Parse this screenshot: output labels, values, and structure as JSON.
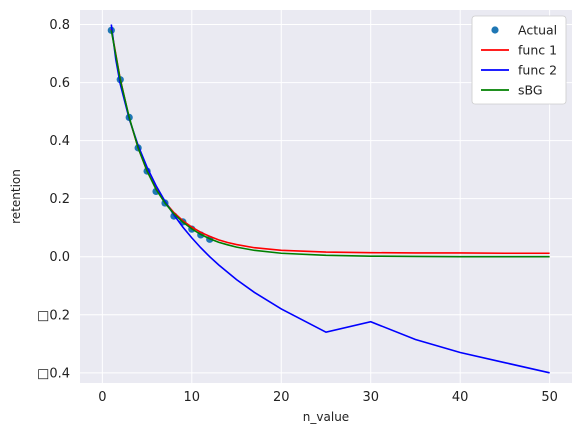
{
  "chart_data": {
    "type": "line",
    "xlabel": "n_value",
    "ylabel": "retention",
    "xlim": [
      -2.5,
      52.5
    ],
    "ylim": [
      -0.435,
      0.85
    ],
    "x_ticks": [
      0,
      10,
      20,
      30,
      40,
      50
    ],
    "x_tick_labels": [
      "0",
      "10",
      "20",
      "30",
      "40",
      "50"
    ],
    "y_ticks": [
      0.8,
      0.6,
      0.4,
      0.2,
      0.0,
      -0.2,
      -0.4
    ],
    "y_tick_labels": [
      "0.8",
      "0.6",
      "0.4",
      "0.2",
      "0.0",
      "□0.2",
      "□0.4"
    ],
    "grid": true,
    "legend_position": "top-right",
    "legend": [
      "Actual",
      "func 1",
      "func 2",
      "sBG"
    ],
    "series": [
      {
        "name": "Actual",
        "kind": "scatter",
        "color": "#1f77b4",
        "x": [
          1,
          2,
          3,
          4,
          5,
          6,
          7,
          8,
          9,
          10,
          11,
          12
        ],
        "y": [
          0.78,
          0.61,
          0.48,
          0.375,
          0.295,
          0.225,
          0.185,
          0.14,
          0.12,
          0.095,
          0.075,
          0.06
        ]
      },
      {
        "name": "func 1",
        "kind": "line",
        "color": "#ff0000",
        "x": [
          1,
          2,
          3,
          4,
          5,
          6,
          7,
          8,
          9,
          10,
          11,
          12,
          13,
          14,
          15,
          17,
          20,
          25,
          30,
          35,
          40,
          45,
          50
        ],
        "y": [
          0.785,
          0.612,
          0.478,
          0.375,
          0.295,
          0.235,
          0.188,
          0.152,
          0.124,
          0.102,
          0.084,
          0.07,
          0.058,
          0.049,
          0.042,
          0.031,
          0.022,
          0.016,
          0.014,
          0.013,
          0.013,
          0.012,
          0.012
        ]
      },
      {
        "name": "func 2",
        "kind": "line",
        "color": "#0000ff",
        "x": [
          1,
          1.5,
          2,
          3,
          4,
          5,
          6,
          7,
          8,
          9,
          10,
          11,
          12,
          13,
          15,
          17,
          20,
          25,
          30,
          35,
          40,
          45,
          50
        ],
        "y": [
          0.8,
          0.68,
          0.595,
          0.475,
          0.383,
          0.308,
          0.245,
          0.191,
          0.144,
          0.102,
          0.065,
          0.031,
          0.0,
          -0.028,
          -0.079,
          -0.123,
          -0.18,
          -0.26,
          -0.224,
          -0.285,
          -0.33,
          -0.365,
          -0.4
        ]
      },
      {
        "name": "sBG",
        "kind": "line",
        "color": "#008000",
        "x": [
          1,
          2,
          3,
          4,
          5,
          6,
          7,
          8,
          9,
          10,
          11,
          12,
          13,
          14,
          15,
          17,
          20,
          25,
          30,
          35,
          40,
          45,
          50
        ],
        "y": [
          0.78,
          0.61,
          0.48,
          0.375,
          0.295,
          0.232,
          0.185,
          0.148,
          0.119,
          0.096,
          0.077,
          0.062,
          0.05,
          0.041,
          0.033,
          0.022,
          0.012,
          0.005,
          0.002,
          0.001,
          0.0,
          0.0,
          0.0
        ]
      }
    ]
  }
}
